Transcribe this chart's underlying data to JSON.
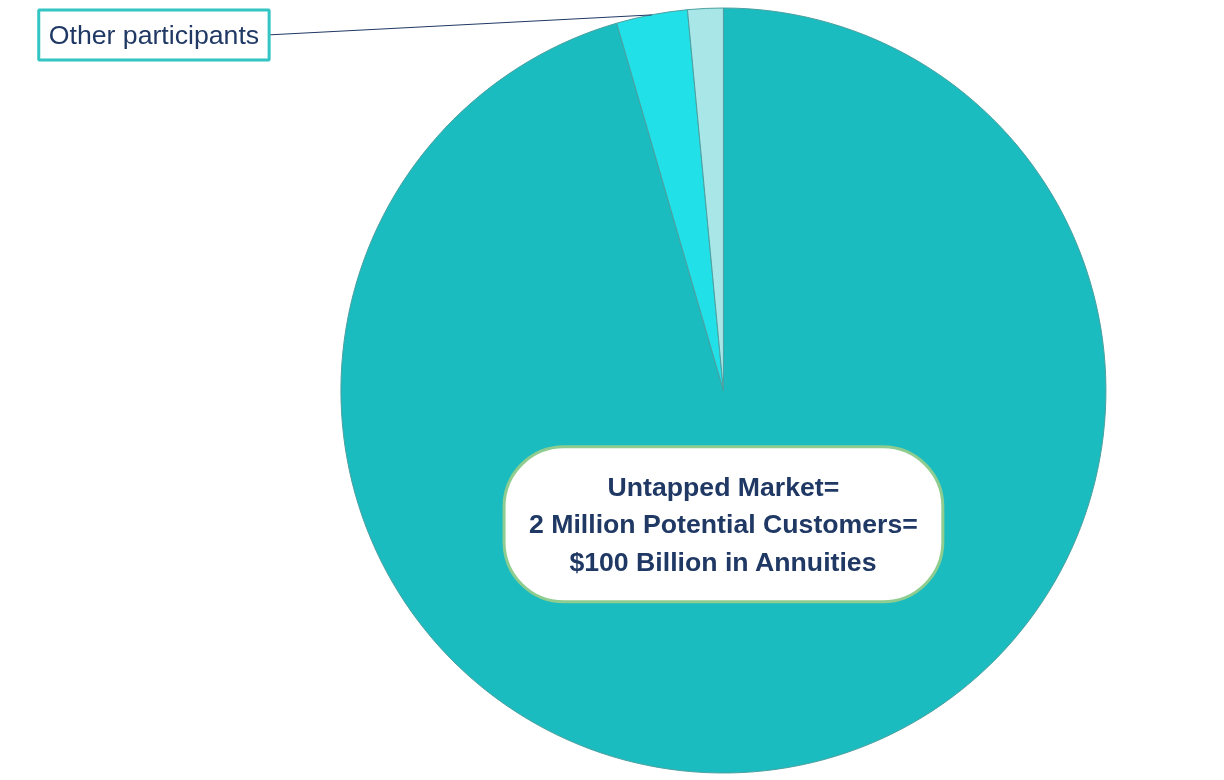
{
  "chart_data": {
    "type": "pie",
    "categories": [
      null,
      "Other participants",
      null
    ],
    "values": [
      95.5,
      3,
      1.5
    ],
    "colors": [
      "#1bbcbf",
      "#22e0e8",
      "#a8e6e8"
    ],
    "annotations": [
      "Untapped Market=\n2 Million Potential Customers=\n$100 Billion in Annuities"
    ]
  }
}
